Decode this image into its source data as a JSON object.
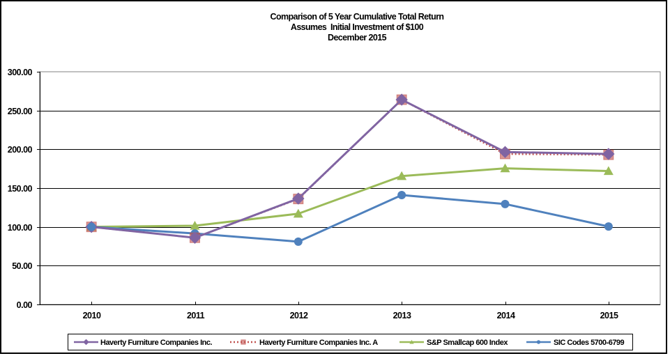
{
  "chart_data": {
    "type": "line",
    "title": "Comparison of 5 Year Cumulative Total Return",
    "subtitle_lines": [
      "Assumes  Initial Investment of $100",
      "December 2015"
    ],
    "xlabel": "",
    "ylabel": "",
    "categories": [
      "2010",
      "2011",
      "2012",
      "2013",
      "2014",
      "2015"
    ],
    "ylim": [
      0,
      300
    ],
    "yticks": [
      0,
      50,
      100,
      150,
      200,
      250,
      300
    ],
    "ytick_labels": [
      "0.00",
      "50.00",
      "100.00",
      "150.00",
      "200.00",
      "250.00",
      "300.00"
    ],
    "grid": "horizontal",
    "legend_position": "bottom",
    "series": [
      {
        "name": "Haverty Furniture Companies Inc.",
        "color": "#8064A2",
        "marker": "diamond",
        "line": "solid",
        "values": [
          100,
          86,
          136.5,
          264,
          196.5,
          194
        ]
      },
      {
        "name": "Haverty Furniture Companies Inc. A",
        "color": "#C0504D",
        "marker": "square",
        "line": "dotted",
        "values": [
          100,
          86,
          136,
          264,
          194,
          193
        ]
      },
      {
        "name": "S&P Smallcap 600 Index",
        "color": "#9BBB59",
        "marker": "triangle",
        "line": "solid",
        "values": [
          100,
          101.5,
          117,
          165.5,
          175.5,
          172
        ]
      },
      {
        "name": "SIC Codes 5700-6799",
        "color": "#4F81BD",
        "marker": "circle",
        "line": "solid",
        "values": [
          100,
          91.5,
          81,
          141,
          129.5,
          100.5
        ]
      }
    ]
  }
}
